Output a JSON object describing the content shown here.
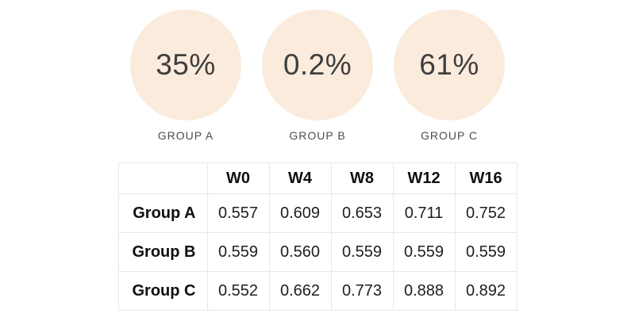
{
  "colors": {
    "circle_fill": "#faebdc",
    "stat_value_text": "#3e3e3e",
    "stat_label_text": "#4d4d4d",
    "table_border": "#e7e7e7",
    "table_text": "#0f0f0f"
  },
  "stats": {
    "items": [
      {
        "value": "35%",
        "label": "GROUP A"
      },
      {
        "value": "0.2%",
        "label": "GROUP B"
      },
      {
        "value": "61%",
        "label": "GROUP C"
      }
    ]
  },
  "chart_data": {
    "type": "table",
    "title": "",
    "categories": [
      "W0",
      "W4",
      "W8",
      "W12",
      "W16"
    ],
    "series": [
      {
        "name": "Group A",
        "values": [
          0.557,
          0.609,
          0.653,
          0.711,
          0.752
        ]
      },
      {
        "name": "Group B",
        "values": [
          0.559,
          0.56,
          0.559,
          0.559,
          0.559
        ]
      },
      {
        "name": "Group C",
        "values": [
          0.552,
          0.662,
          0.773,
          0.888,
          0.892
        ]
      }
    ],
    "highlight_stats": [
      {
        "group": "Group A",
        "percent": "35%"
      },
      {
        "group": "Group B",
        "percent": "0.2%"
      },
      {
        "group": "Group C",
        "percent": "61%"
      }
    ],
    "layout": {
      "grid": true,
      "header_row": true,
      "row_labels_bold": true
    }
  },
  "table": {
    "col_headers": [
      "W0",
      "W4",
      "W8",
      "W12",
      "W16"
    ],
    "rows": [
      {
        "label": "Group A",
        "values": [
          "0.557",
          "0.609",
          "0.653",
          "0.711",
          "0.752"
        ]
      },
      {
        "label": "Group B",
        "values": [
          "0.559",
          "0.560",
          "0.559",
          "0.559",
          "0.559"
        ]
      },
      {
        "label": "Group C",
        "values": [
          "0.552",
          "0.662",
          "0.773",
          "0.888",
          "0.892"
        ]
      }
    ]
  }
}
